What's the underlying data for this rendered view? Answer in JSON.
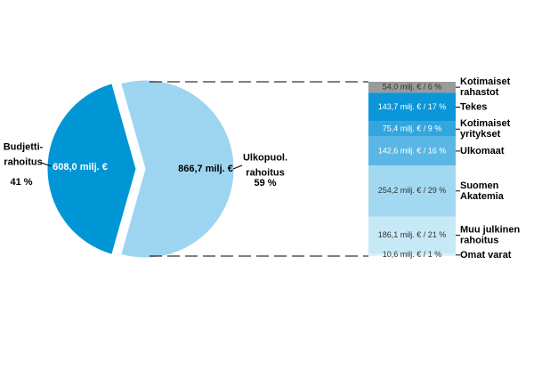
{
  "chart_data": [
    {
      "type": "pie",
      "categories": [
        "Budjetti-\nrahoitus",
        "Ulkopuol.\nrahoitus"
      ],
      "values": [
        608.0,
        866.7
      ],
      "value_labels": [
        "608,0 milj. €",
        "866,7 milj. €"
      ],
      "percents": [
        41,
        59
      ],
      "percent_labels": [
        "41 %",
        "59 %"
      ],
      "colors": [
        "#0096d6",
        "#9dd5f0"
      ]
    },
    {
      "type": "bar",
      "categories": [
        "Kotimaiset\nrahastot",
        "Tekes",
        "Kotimaiset\nyritykset",
        "Ulkomaat",
        "Suomen\nAkatemia",
        "Muu julkinen\nrahoitus",
        "Omat varat"
      ],
      "values": [
        54.0,
        143.7,
        75.4,
        142.6,
        254.2,
        186.1,
        10.6
      ],
      "value_labels": [
        "54,0 milj. € / 6 %",
        "143,7 milj. € / 17 %",
        "75,4 milj. € / 9 %",
        "142,6 milj. € / 16 %",
        "254,2 milj. € / 29 %",
        "186,1 milj. € / 21 %",
        "10,6 milj. € / 1 %"
      ],
      "colors": [
        "#9a9a9a",
        "#0a96d8",
        "#34a6de",
        "#5ab6e4",
        "#a3d8f1",
        "#c7e8f7",
        "#e1f2fa"
      ]
    }
  ]
}
